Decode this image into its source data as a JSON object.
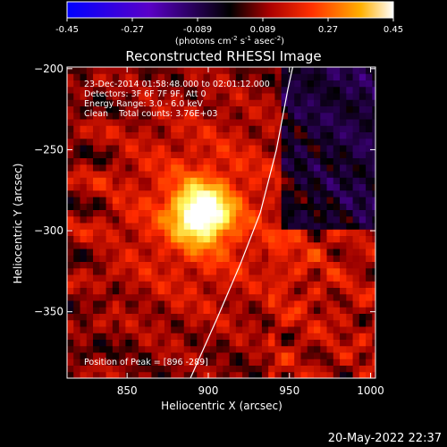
{
  "colorbar": {
    "ticks": [
      "-0.45",
      "-0.27",
      "-0.089",
      "0.089",
      "0.27",
      "0.45"
    ],
    "units_main": "(photons cm",
    "units_sup1": "-2",
    "units_mid": " s",
    "units_sup2": "-1",
    "units_mid2": " asec",
    "units_sup3": "-2",
    "units_end": ")"
  },
  "chart_data": {
    "type": "heatmap",
    "title": "Reconstructed RHESSI Image",
    "xlabel": "Heliocentric X (arcsec)",
    "ylabel": "Heliocentric Y (arcsec)",
    "xlim": [
      813,
      1003
    ],
    "ylim": [
      -391,
      -199
    ],
    "x_ticks": [
      850,
      900,
      950,
      1000
    ],
    "y_ticks": [
      -200,
      -250,
      -300,
      -350
    ],
    "x_tick_labels": [
      "850",
      "900",
      "950",
      "1000"
    ],
    "y_tick_labels": [
      "−200",
      "−250",
      "−300",
      "−350"
    ],
    "color_range": [
      -0.45,
      0.45
    ],
    "colormap": [
      "#0000ff",
      "#6600cc",
      "#000000",
      "#990000",
      "#ff2a00",
      "#ff9900",
      "#ffff66",
      "#ffffff"
    ],
    "peak": {
      "x": 896,
      "y": -289,
      "value": 0.45
    },
    "limb_arc": [
      [
        889,
        -391
      ],
      [
        905,
        -355
      ],
      [
        920,
        -320
      ],
      [
        932,
        -289
      ],
      [
        942,
        -250
      ],
      [
        949,
        -213
      ],
      [
        952,
        -199
      ]
    ],
    "annotations": [
      "23-Dec-2014 01:58:48.000 to 02:01:12.000",
      "Detectors: 3F 6F 7F 9F, Att 0",
      "Energy Range: 3.0 - 6.0 keV",
      "Clean    Total counts: 3.76E+03",
      "Position of Peak = [896 -289]"
    ]
  },
  "footer": {
    "timestamp": "20-May-2022 22:37"
  }
}
